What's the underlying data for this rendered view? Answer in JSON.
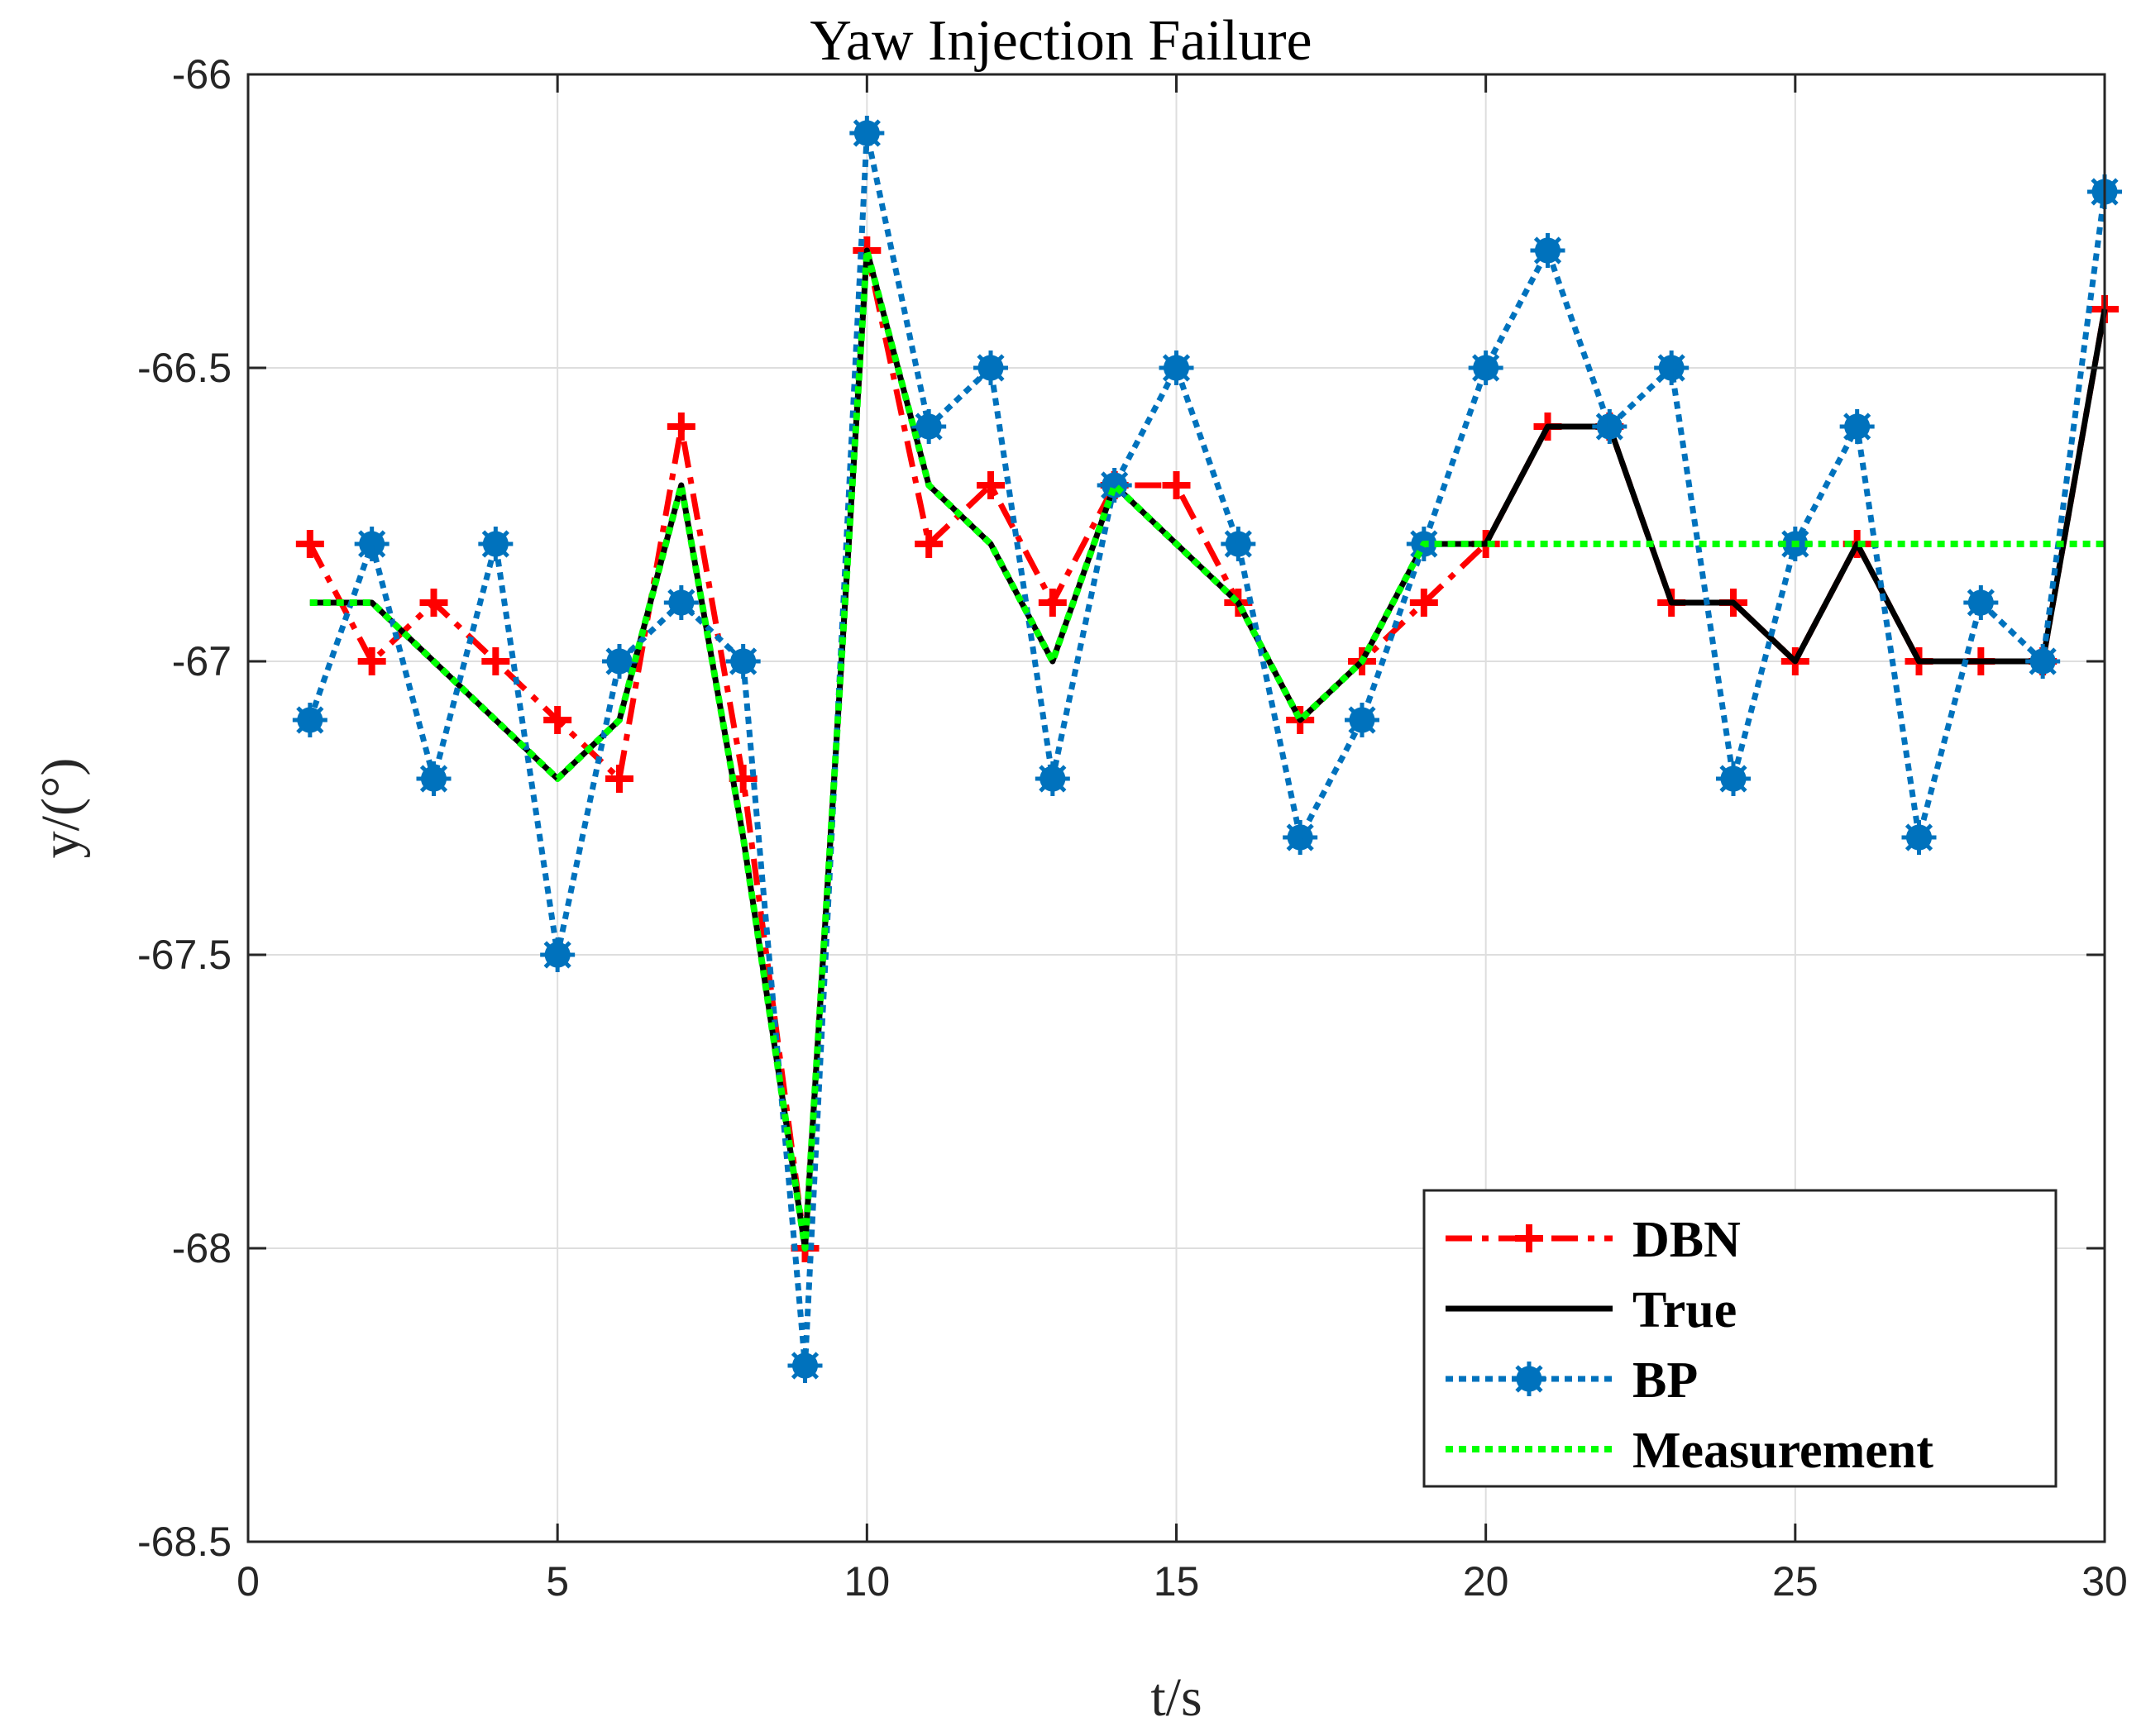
{
  "chart_data": {
    "type": "line",
    "title": "Yaw Injection Failure",
    "xlabel": "t/s",
    "ylabel": "y/(°)",
    "xlim": [
      0,
      30
    ],
    "ylim": [
      -68.5,
      -66
    ],
    "xticks": [
      0,
      5,
      10,
      15,
      20,
      25,
      30
    ],
    "yticks": [
      -66,
      -66.5,
      -67,
      -67.5,
      -68,
      -68.5
    ],
    "xtick_labels": [
      "0",
      "5",
      "10",
      "15",
      "20",
      "25",
      "30"
    ],
    "ytick_labels": [
      "-66",
      "-66.5",
      "-67",
      "-67.5",
      "-68",
      "-68.5"
    ],
    "grid": true,
    "legend_position": "bottom-right",
    "x": [
      1,
      2,
      3,
      4,
      5,
      6,
      7,
      8,
      9,
      10,
      11,
      12,
      13,
      14,
      15,
      16,
      17,
      18,
      19,
      20,
      21,
      22,
      23,
      24,
      25,
      26,
      27,
      28,
      29,
      30
    ],
    "series": [
      {
        "name": "DBN",
        "color": "#ff0000",
        "line_style": "dash-dot",
        "marker": "plus",
        "values": [
          -66.8,
          -67.0,
          -66.9,
          -67.0,
          -67.1,
          -67.2,
          -66.6,
          -67.2,
          -68.0,
          -66.3,
          -66.8,
          -66.7,
          -66.9,
          -66.7,
          -66.7,
          -66.9,
          -67.1,
          -67.0,
          -66.9,
          -66.8,
          -66.6,
          -66.6,
          -66.9,
          -66.9,
          -67.0,
          -66.8,
          -67.0,
          -67.0,
          -67.0,
          -66.4
        ]
      },
      {
        "name": "True",
        "color": "#000000",
        "line_style": "solid",
        "marker": "none",
        "values": [
          -66.9,
          -66.9,
          -67.0,
          -67.1,
          -67.2,
          -67.1,
          -66.7,
          -67.3,
          -68.0,
          -66.3,
          -66.7,
          -66.8,
          -67.0,
          -66.7,
          -66.8,
          -66.9,
          -67.1,
          -67.0,
          -66.8,
          -66.8,
          -66.6,
          -66.6,
          -66.9,
          -66.9,
          -67.0,
          -66.8,
          -67.0,
          -67.0,
          -67.0,
          -66.4
        ]
      },
      {
        "name": "BP",
        "color": "#0072bd",
        "line_style": "dotted",
        "marker": "asterisk",
        "values": [
          -67.1,
          -66.8,
          -67.2,
          -66.8,
          -67.5,
          -67.0,
          -66.9,
          -67.0,
          -68.2,
          -66.1,
          -66.6,
          -66.5,
          -67.2,
          -66.7,
          -66.5,
          -66.8,
          -67.3,
          -67.1,
          -66.8,
          -66.5,
          -66.3,
          -66.6,
          -66.5,
          -67.2,
          -66.8,
          -66.6,
          -67.3,
          -66.9,
          -67.0,
          -66.2
        ]
      },
      {
        "name": "Measurement",
        "color": "#00ff00",
        "line_style": "dotted",
        "marker": "none",
        "values": [
          -66.9,
          -66.9,
          -67.0,
          -67.1,
          -67.2,
          -67.1,
          -66.7,
          -67.3,
          -68.0,
          -66.3,
          -66.7,
          -66.8,
          -67.0,
          -66.7,
          -66.8,
          -66.9,
          -67.1,
          -67.0,
          -66.8,
          -66.8,
          -66.8,
          -66.8,
          -66.8,
          -66.8,
          -66.8,
          -66.8,
          -66.8,
          -66.8,
          -66.8,
          -66.8
        ]
      }
    ]
  }
}
